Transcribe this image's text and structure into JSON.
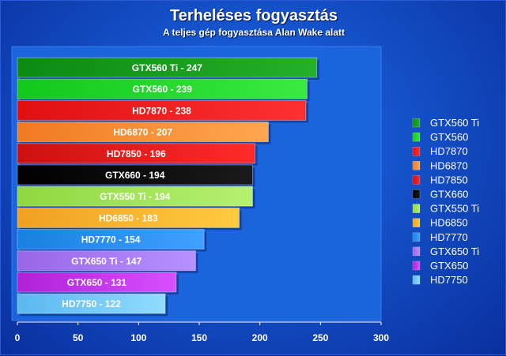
{
  "header": {
    "title": "Terheléses fogyasztás",
    "subtitle": "A teljes gép fogyasztása Alan Wake alatt"
  },
  "chart_data": {
    "type": "bar",
    "orientation": "horizontal",
    "title": "Terheléses fogyasztás",
    "subtitle": "A teljes gép fogyasztása Alan Wake alatt",
    "xlabel": "",
    "ylabel": "",
    "xlim": [
      0,
      300
    ],
    "xticks": [
      0,
      50,
      100,
      150,
      200,
      250,
      300
    ],
    "legend_position": "right",
    "grid": false,
    "categories": [
      "GTX560 Ti",
      "GTX560",
      "HD7870",
      "HD6870",
      "HD7850",
      "GTX660",
      "GTX550 Ti",
      "HD6850",
      "HD7770",
      "GTX650 Ti",
      "GTX650",
      "HD7750"
    ],
    "values": [
      247,
      239,
      238,
      207,
      196,
      194,
      194,
      183,
      154,
      147,
      131,
      122
    ],
    "labels": [
      "GTX560 Ti - 247",
      "GTX560 - 239",
      "HD7870 - 238",
      "HD6870 - 207",
      "HD7850 - 196",
      "GTX660 - 194",
      "GTX550 Ti - 194",
      "HD6850 - 183",
      "HD7770 - 154",
      "GTX650 Ti - 147",
      "GTX650 - 131",
      "HD7750 - 122"
    ],
    "colors": [
      "#0c8a12",
      "#12c81a",
      "#e01010",
      "#f07a22",
      "#cc1010",
      "#000000",
      "#8fd840",
      "#f0a020",
      "#1880e0",
      "#9a66e8",
      "#b020d8",
      "#5ab8f0"
    ],
    "colors_light": [
      "#24b02a",
      "#3aea40",
      "#ff3030",
      "#ffa650",
      "#ff2a2a",
      "#1a1a1a",
      "#b6f070",
      "#ffca40",
      "#40a0ff",
      "#b890ff",
      "#d850ff",
      "#90dcff"
    ]
  }
}
